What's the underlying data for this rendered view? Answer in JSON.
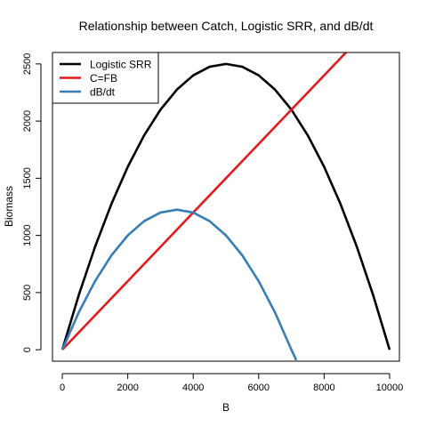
{
  "chart_data": {
    "type": "line",
    "title": "Relationship between Catch, Logistic SRR, and dB/dt",
    "xlabel": "B",
    "ylabel": "Biomass",
    "xlim": [
      -300,
      10300
    ],
    "ylim": [
      -100,
      2600
    ],
    "x_ticks": [
      0,
      2000,
      4000,
      6000,
      8000,
      10000
    ],
    "x_tick_labels": [
      "0",
      "2000",
      "4000",
      "6000",
      "8000",
      "10000"
    ],
    "y_ticks": [
      0,
      500,
      1000,
      1500,
      2000,
      2500
    ],
    "y_tick_labels": [
      "0",
      "500",
      "1000",
      "1500",
      "2000",
      "2500"
    ],
    "grid": false,
    "legend": {
      "placement": "top-left",
      "boxed": true
    },
    "series": [
      {
        "name": "Logistic SRR",
        "color": "#000000",
        "x": [
          0,
          500,
          1000,
          1500,
          2000,
          2500,
          3000,
          3500,
          4000,
          4500,
          5000,
          5500,
          6000,
          6500,
          7000,
          7500,
          8000,
          8500,
          9000,
          9500,
          10000
        ],
        "y": [
          0,
          475,
          900,
          1275,
          1600,
          1875,
          2100,
          2275,
          2400,
          2475,
          2500,
          2475,
          2400,
          2275,
          2100,
          1875,
          1600,
          1275,
          900,
          475,
          0
        ]
      },
      {
        "name": "C=FB",
        "color": "#e41a1c",
        "x": [
          0,
          8700
        ],
        "y": [
          0,
          2610
        ]
      },
      {
        "name": "dB/dt",
        "color": "#377eb8",
        "x": [
          0,
          500,
          1000,
          1500,
          2000,
          2500,
          3000,
          3500,
          4000,
          4500,
          5000,
          5500,
          6000,
          6500,
          7000,
          7150
        ],
        "y": [
          0,
          325,
          600,
          825,
          1000,
          1125,
          1200,
          1225,
          1200,
          1125,
          1000,
          825,
          600,
          325,
          0,
          -92
        ]
      }
    ]
  }
}
